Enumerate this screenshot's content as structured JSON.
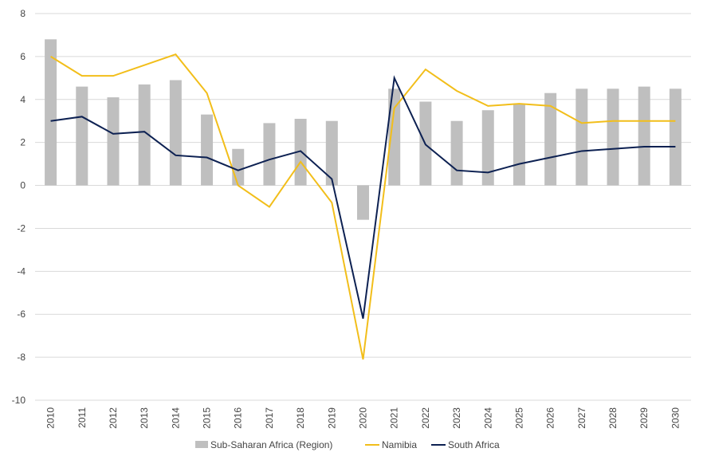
{
  "chart_data": {
    "type": "bar+line",
    "categories": [
      "2010",
      "2011",
      "2012",
      "2013",
      "2014",
      "2015",
      "2016",
      "2017",
      "2018",
      "2019",
      "2020",
      "2021",
      "2022",
      "2023",
      "2024",
      "2025",
      "2026",
      "2027",
      "2028",
      "2029",
      "2030"
    ],
    "series": [
      {
        "name": "Sub-Saharan Africa (Region)",
        "type": "bar",
        "color": "#bfbfbf",
        "values": [
          6.8,
          4.6,
          4.1,
          4.7,
          4.9,
          3.3,
          1.7,
          2.9,
          3.1,
          3.0,
          -1.6,
          4.5,
          3.9,
          3.0,
          3.5,
          3.8,
          4.3,
          4.5,
          4.5,
          4.6,
          4.5
        ]
      },
      {
        "name": "Namibia",
        "type": "line",
        "color": "#f2be1a",
        "values": [
          6.0,
          5.1,
          5.1,
          5.6,
          6.1,
          4.3,
          0.0,
          -1.0,
          1.1,
          -0.8,
          -8.1,
          3.6,
          5.4,
          4.4,
          3.7,
          3.8,
          3.7,
          2.9,
          3.0,
          3.0,
          3.0
        ]
      },
      {
        "name": "South Africa",
        "type": "line",
        "color": "#0d2152",
        "values": [
          3.0,
          3.2,
          2.4,
          2.5,
          1.4,
          1.3,
          0.7,
          1.2,
          1.6,
          0.3,
          -6.2,
          5.0,
          1.9,
          0.7,
          0.6,
          1.0,
          1.3,
          1.6,
          1.7,
          1.8,
          1.8
        ]
      }
    ],
    "y_ticks": [
      "8",
      "6",
      "4",
      "2",
      "0",
      "-2",
      "-4",
      "-6",
      "-8",
      "-10"
    ],
    "ylim": [
      -10,
      8
    ],
    "grid": true,
    "legend_position": "bottom"
  }
}
